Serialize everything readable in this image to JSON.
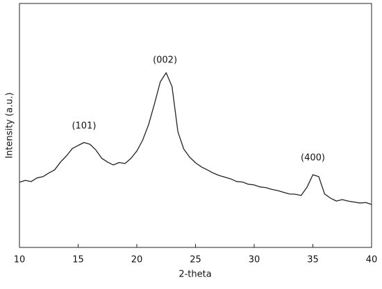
{
  "chart_data": {
    "type": "line",
    "x_label": "2-theta",
    "y_label": "Intensity (a.u.)",
    "x": [
      10,
      10.5,
      11,
      11.5,
      12,
      12.5,
      13,
      13.5,
      14,
      14.5,
      15,
      15.5,
      16,
      16.5,
      17,
      17.5,
      18,
      18.5,
      19,
      19.5,
      20,
      20.5,
      21,
      21.5,
      22,
      22.5,
      23,
      23.5,
      24,
      24.5,
      25,
      25.5,
      26,
      26.5,
      27,
      27.5,
      28,
      28.5,
      29,
      29.5,
      30,
      30.5,
      31,
      31.5,
      32,
      32.5,
      33,
      33.5,
      34,
      34.5,
      35,
      35.5,
      36,
      36.5,
      37,
      37.5,
      38,
      38.5,
      39,
      39.5,
      40
    ],
    "series": [
      {
        "color": "#222222",
        "values": [
          26.7,
          27.5,
          27,
          28.5,
          29,
          30.5,
          31.8,
          35,
          37.5,
          40.5,
          41.8,
          43,
          42.3,
          40,
          36.6,
          35,
          33.8,
          34.8,
          34.4,
          36.5,
          39.5,
          44,
          50.3,
          58.8,
          67.9,
          71.6,
          65.9,
          47.4,
          40.3,
          37,
          34.7,
          33,
          31.8,
          30.5,
          29.5,
          28.8,
          28.1,
          27,
          26.8,
          25.9,
          25.6,
          24.8,
          24.5,
          23.8,
          23.3,
          22.6,
          21.9,
          21.8,
          21.3,
          24.7,
          29.8,
          29,
          21.9,
          20.2,
          19,
          19.6,
          19,
          18.6,
          18.2,
          18.4,
          17.6
        ]
      }
    ],
    "annotations": [
      {
        "text": "(101)",
        "x": 15.5,
        "y": 49.7
      },
      {
        "text": "(002)",
        "x": 22.4,
        "y": 76.7
      },
      {
        "text": "(400)",
        "x": 35,
        "y": 36.6
      }
    ],
    "xlim": [
      10,
      40
    ],
    "xticks": [
      10,
      15,
      20,
      25,
      30,
      35,
      40
    ],
    "ylim": [
      0,
      100
    ]
  }
}
